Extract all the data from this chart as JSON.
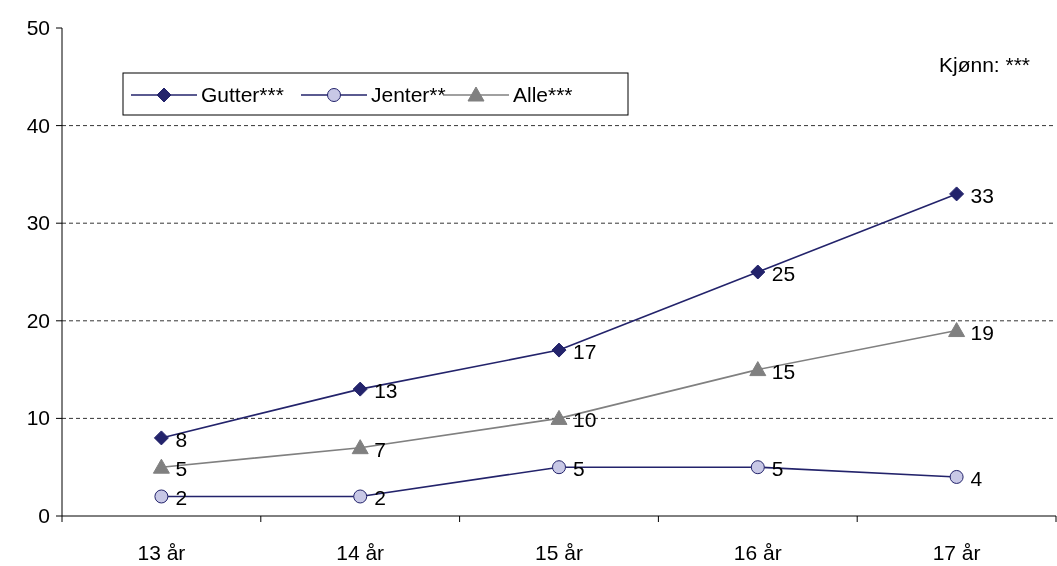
{
  "chart_data": {
    "type": "line",
    "categories": [
      "13 år",
      "14 år",
      "15 år",
      "16 år",
      "17 år"
    ],
    "series": [
      {
        "name": "Gutter***",
        "color": "#23236b",
        "marker": "diamond",
        "values": [
          8,
          13,
          17,
          25,
          33
        ]
      },
      {
        "name": "Jenter**",
        "color": "#23236b",
        "marker": "circle",
        "values": [
          2,
          2,
          5,
          5,
          4
        ]
      },
      {
        "name": "Alle***",
        "color": "#808080",
        "marker": "triangle",
        "values": [
          5,
          7,
          10,
          15,
          19
        ]
      }
    ],
    "ylim": [
      0,
      50
    ],
    "yticks": [
      0,
      10,
      20,
      30,
      40,
      50
    ],
    "grid": "y",
    "legend": "top left",
    "data_labels": true,
    "annotations": [
      "Kjønn: ***"
    ]
  }
}
